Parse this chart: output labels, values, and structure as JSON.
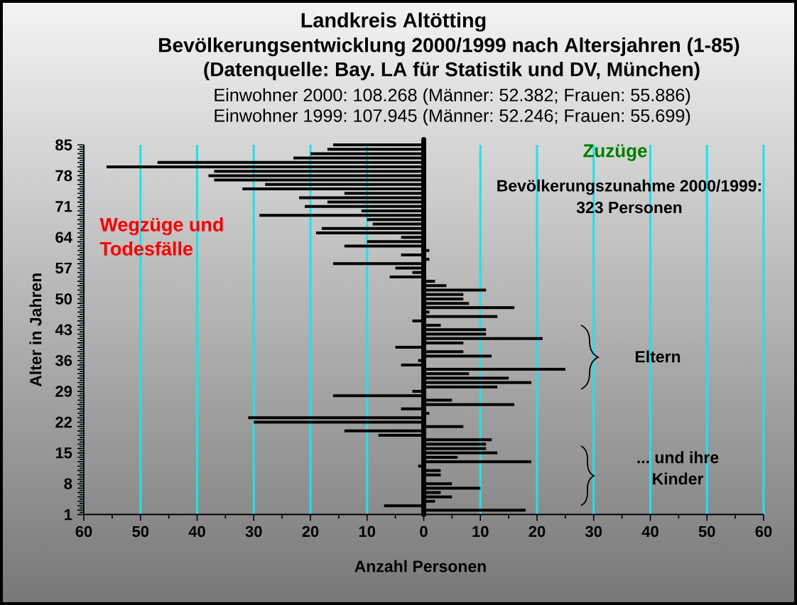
{
  "chart_data": {
    "type": "bar",
    "orientation": "horizontal",
    "title": "Landkreis Altötting",
    "subtitle": "Bevölkerungsentwicklung 2000/1999 nach Altersjahren (1-85)",
    "xlabel": "Anzahl Personen",
    "ylabel": "Alter in Jahren",
    "categories": [
      "85",
      null,
      null,
      null,
      null,
      null,
      null,
      "78",
      null,
      null,
      null,
      null,
      null,
      null,
      "71",
      null,
      null,
      null,
      null,
      null,
      null,
      "64",
      null,
      null,
      null,
      null,
      null,
      null,
      "57",
      null,
      null,
      null,
      null,
      null,
      null,
      "50",
      null,
      null,
      null,
      null,
      null,
      null,
      "43",
      null,
      null,
      null,
      null,
      null,
      null,
      "36",
      null,
      null,
      null,
      null,
      null,
      null,
      "29",
      null,
      null,
      null,
      null,
      null,
      null,
      "22",
      null,
      null,
      null,
      null,
      null,
      null,
      "15",
      null,
      null,
      null,
      null,
      null,
      null,
      "8",
      null,
      null,
      null,
      null,
      null,
      null,
      "1"
    ],
    "values": [
      -16,
      -17,
      -20,
      -23,
      -47,
      -56,
      -37,
      -38,
      -37,
      -28,
      -32,
      -14,
      -22,
      -17,
      -21,
      -11,
      -29,
      -10,
      -9,
      -18,
      -19,
      -4,
      -10,
      -14,
      1,
      -4,
      1,
      -16,
      -5,
      -2,
      -6,
      2,
      4,
      11,
      7,
      7,
      8,
      16,
      1,
      13,
      -2,
      3,
      11,
      11,
      21,
      7,
      -5,
      7,
      12,
      -1,
      -4,
      25,
      8,
      15,
      19,
      13,
      -2,
      -16,
      5,
      16,
      -4,
      1,
      -31,
      -30,
      7,
      -14,
      -8,
      12,
      11,
      11,
      13,
      6,
      19,
      -1,
      3,
      3,
      0,
      5,
      10,
      3,
      5,
      2,
      -7,
      18,
      null
    ],
    "color": "#000000",
    "xlim": [
      -60,
      60
    ],
    "xticks": [
      {
        "value": -60,
        "label": "60"
      },
      {
        "value": -55,
        "label": null
      },
      {
        "value": -50,
        "label": "50"
      },
      {
        "value": -45,
        "label": null
      },
      {
        "value": -40,
        "label": "40"
      },
      {
        "value": -35,
        "label": null
      },
      {
        "value": -30,
        "label": "30"
      },
      {
        "value": -25,
        "label": null
      },
      {
        "value": -20,
        "label": "20"
      },
      {
        "value": -15,
        "label": null
      },
      {
        "value": -10,
        "label": "10"
      },
      {
        "value": -5,
        "label": null
      },
      0,
      {
        "value": 5,
        "label": null
      },
      10,
      {
        "value": 15,
        "label": null
      },
      20,
      {
        "value": 25,
        "label": null
      },
      30,
      {
        "value": 35,
        "label": null
      },
      40,
      {
        "value": 45,
        "label": null
      },
      50,
      {
        "value": 55,
        "label": null
      },
      60
    ],
    "grid": "x",
    "annotations": [
      "(Datenquelle: Bay. LA für Statistik und DV, München)",
      "Einwohner 2000: 108.268 (Männer: 52.382; Frauen: 55.886)",
      "Einwohner 1999: 107.945 (Männer: 52.246; Frauen: 55.699)",
      "Zuzüge",
      "Bevölkerungszunahme 2000/1999: 323 Personen",
      "Wegzüge und Todesfälle",
      "Eltern",
      "... und ihre Kinder"
    ]
  }
}
